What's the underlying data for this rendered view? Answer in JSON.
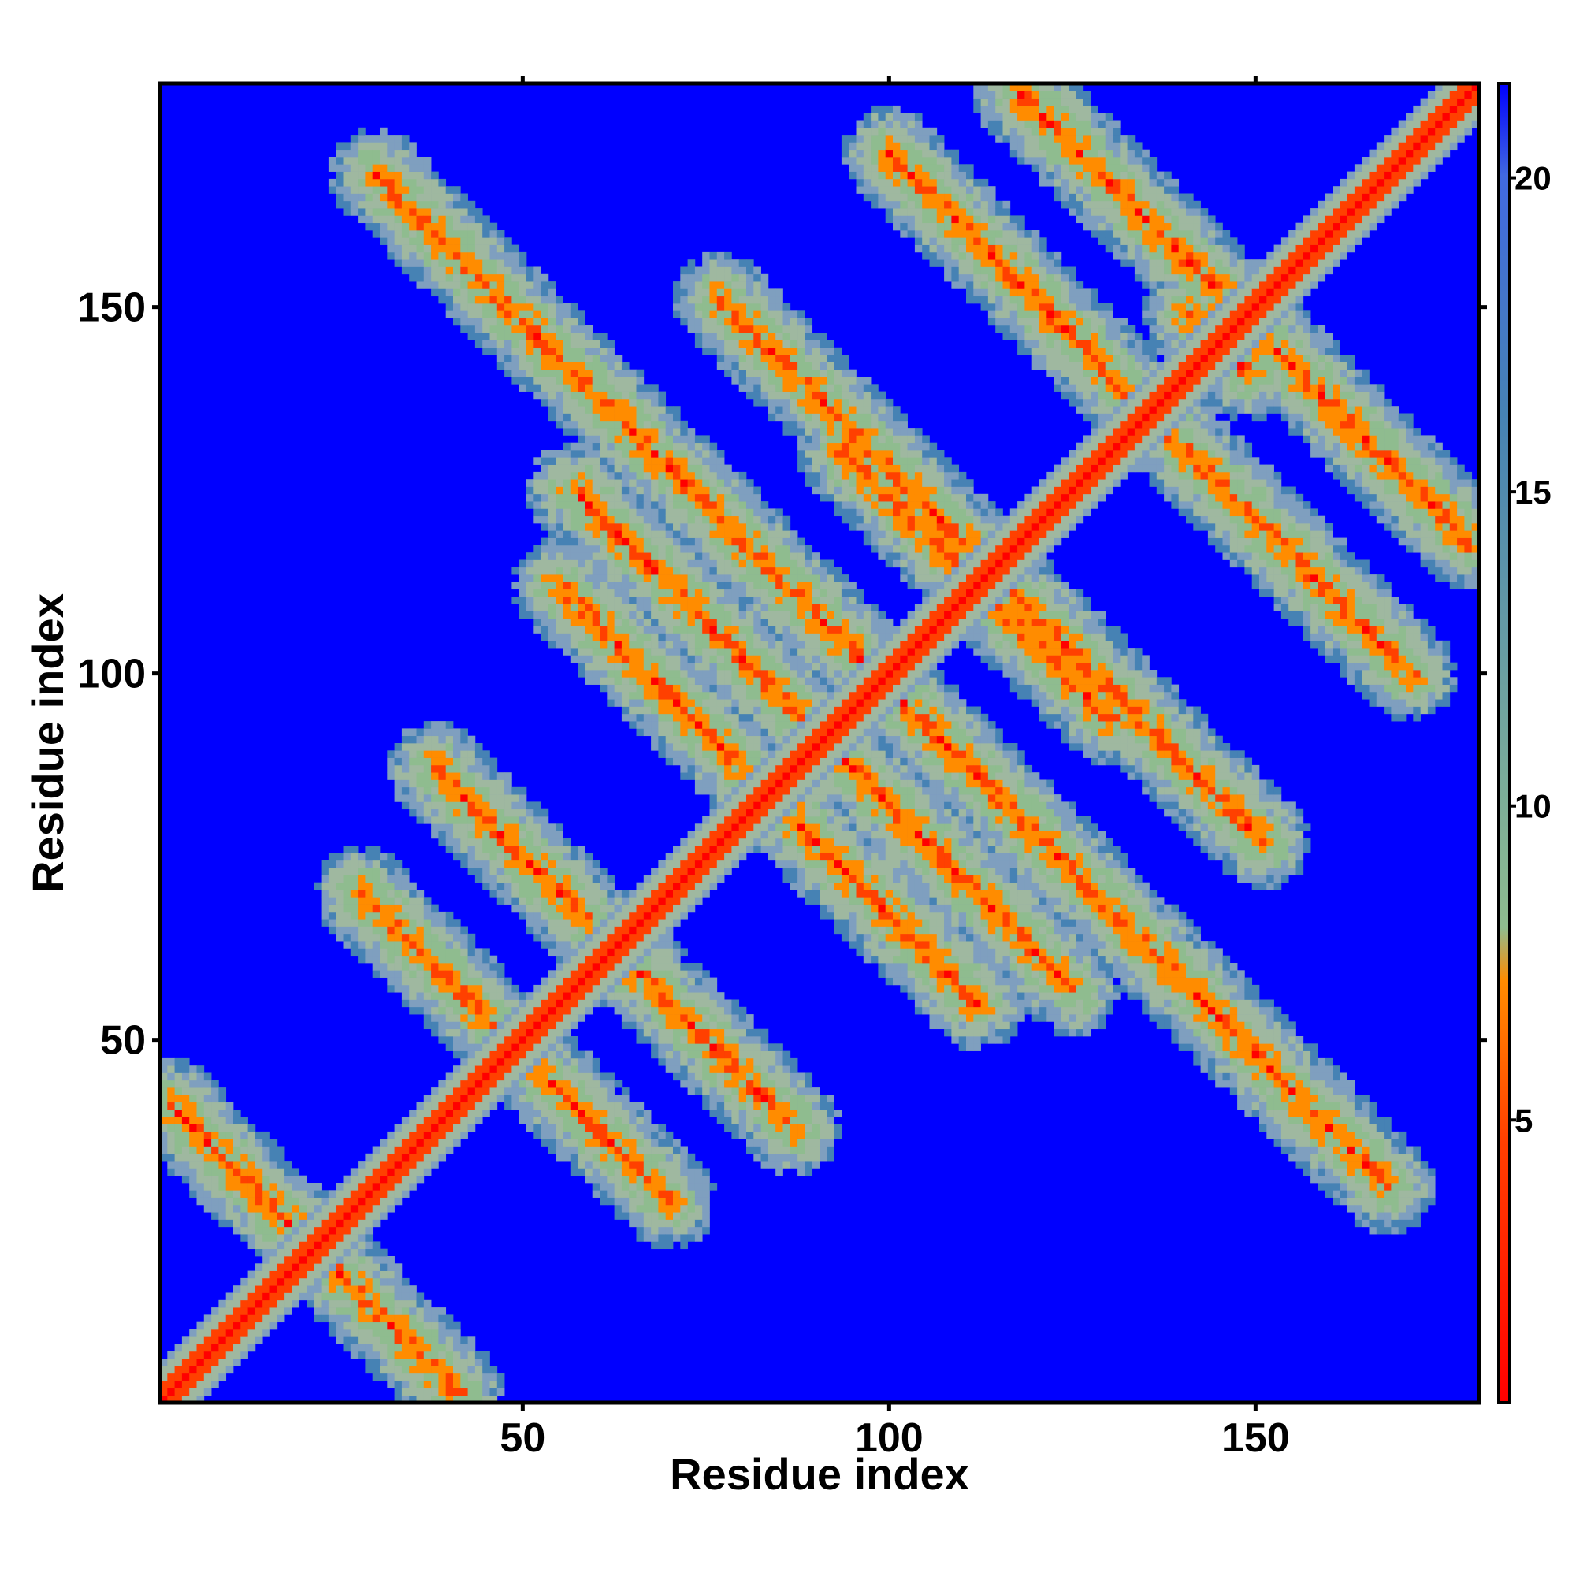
{
  "chart_data": {
    "type": "heatmap",
    "title": "",
    "xlabel": "Residue index",
    "ylabel": "Residue index",
    "n_residues": 180,
    "xlim": [
      1,
      180
    ],
    "ylim": [
      1,
      180
    ],
    "x_ticks": [
      "50",
      "100",
      "150"
    ],
    "y_ticks": [
      "50",
      "100",
      "150"
    ],
    "colorbar": {
      "ticks": [
        "5",
        "10",
        "15",
        "20"
      ],
      "range": [
        0.5,
        21.5
      ],
      "colors": [
        "#ff0000",
        "#ff8c00",
        "#8fbc8f",
        "#4682b4",
        "#0000ff"
      ]
    },
    "background_value": 21,
    "diagonal_value": 1,
    "colors": {
      "background": "#0000ff",
      "contact_close": "#ff0000",
      "contact_mid": "#ff8c00",
      "contact_far": "#8fbc8f",
      "contact_edge": "#4682b4"
    },
    "contact_bands": [
      {
        "from": [
          41,
          2
        ],
        "to": [
          2,
          41
        ]
      },
      {
        "from": [
          70,
          28
        ],
        "to": [
          28,
          70
        ]
      },
      {
        "from": [
          87,
          38
        ],
        "to": [
          38,
          87
        ]
      },
      {
        "from": [
          112,
          55
        ],
        "to": [
          55,
          112
        ]
      },
      {
        "from": [
          125,
          57
        ],
        "to": [
          57,
          125
        ]
      },
      {
        "from": [
          151,
          77
        ],
        "to": [
          77,
          151
        ]
      },
      {
        "from": [
          130,
          94
        ],
        "to": [
          94,
          130
        ]
      },
      {
        "from": [
          171,
          100
        ],
        "to": [
          100,
          171
        ]
      },
      {
        "from": [
          179,
          118
        ],
        "to": [
          118,
          179
        ]
      },
      {
        "from": [
          149,
          141
        ],
        "to": [
          141,
          149
        ]
      },
      {
        "from": [
          168,
          30
        ],
        "to": [
          30,
          168
        ]
      }
    ]
  }
}
